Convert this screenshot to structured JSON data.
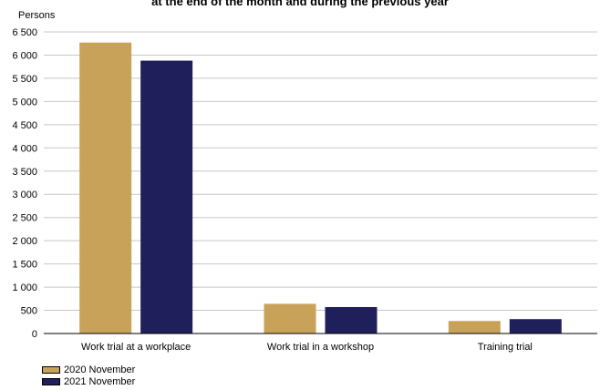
{
  "chart_data": {
    "type": "bar",
    "title": "at the end of the month and during the previous year",
    "ylabel": "Persons",
    "ylim": [
      0,
      6500
    ],
    "yticks": [
      0,
      500,
      1000,
      1500,
      2000,
      2500,
      3000,
      3500,
      4000,
      4500,
      5000,
      5500,
      6000,
      6500
    ],
    "ytick_labels": [
      "0",
      "500",
      "1 000",
      "1 500",
      "2 000",
      "2 500",
      "3 000",
      "3 500",
      "4 000",
      "4 500",
      "5 000",
      "5 500",
      "6 000",
      "6 500"
    ],
    "categories": [
      "Work trial at a workplace",
      "Work trial in a workshop",
      "Training trial"
    ],
    "series": [
      {
        "name": "2020 November",
        "color": "#C9A25A",
        "values": [
          6270,
          640,
          270
        ]
      },
      {
        "name": "2021 November",
        "color": "#1F1F5C",
        "values": [
          5880,
          570,
          310
        ]
      }
    ],
    "grid": true,
    "legend_position": "bottom-left"
  }
}
